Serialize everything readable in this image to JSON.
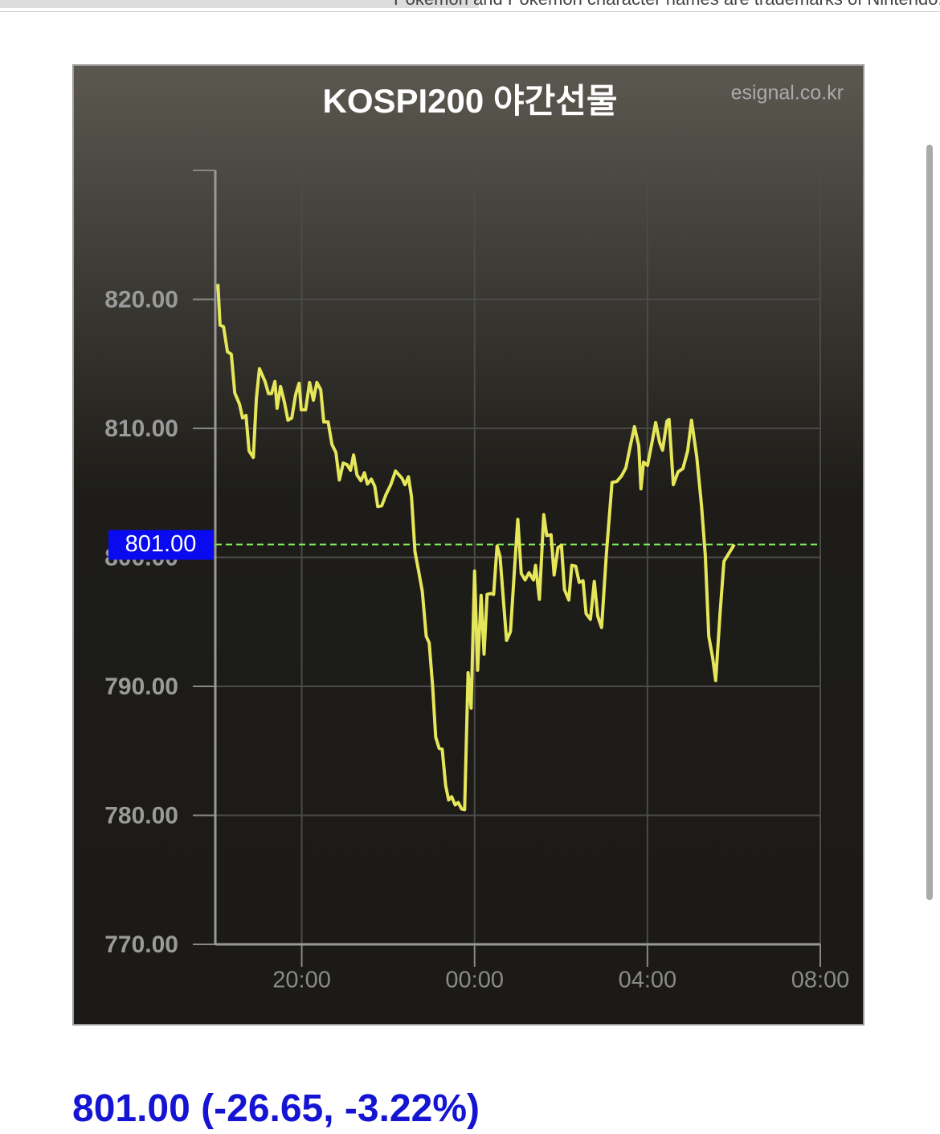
{
  "top_banner": "Pokemon and Pokemon character names are trademarks of Nintendo.",
  "footer": "801.00 (-26.65, -3.22%)",
  "chart_data": {
    "type": "line",
    "title": "KOSPI200 야간선물",
    "source": "esignal.co.kr",
    "xlim": [
      18,
      32
    ],
    "ylim": [
      770,
      830
    ],
    "xticks": [
      {
        "value": 20,
        "label": "20:00"
      },
      {
        "value": 24,
        "label": "00:00"
      },
      {
        "value": 28,
        "label": "04:00"
      },
      {
        "value": 32,
        "label": "08:00"
      }
    ],
    "yticks": [
      {
        "value": 770,
        "label": "770.00"
      },
      {
        "value": 780,
        "label": "780.00"
      },
      {
        "value": 790,
        "label": "790.00"
      },
      {
        "value": 800,
        "label": "800.00"
      },
      {
        "value": 810,
        "label": "810.00"
      },
      {
        "value": 820,
        "label": "820.00"
      }
    ],
    "grid": true,
    "reference_line": {
      "value": 801,
      "label": "801.00",
      "color": "#7ee85a"
    },
    "series": [
      {
        "color": "#e6e65a",
        "x": [
          18.06,
          18.11,
          18.19,
          18.28,
          18.37,
          18.45,
          18.56,
          18.63,
          18.71,
          18.78,
          18.88,
          18.95,
          19.02,
          19.15,
          19.23,
          19.3,
          19.38,
          19.43,
          19.51,
          19.6,
          19.68,
          19.77,
          19.86,
          19.94,
          19.99,
          20.09,
          20.18,
          20.27,
          20.35,
          20.44,
          20.51,
          20.61,
          20.7,
          20.79,
          20.87,
          20.96,
          21.05,
          21.13,
          21.2,
          21.28,
          21.37,
          21.45,
          21.52,
          21.61,
          21.69,
          21.76,
          21.85,
          21.95,
          22.06,
          22.17,
          22.32,
          22.39,
          22.47,
          22.54,
          22.62,
          22.69,
          22.79,
          22.88,
          22.95,
          23.03,
          23.1,
          23.18,
          23.25,
          23.33,
          23.4,
          23.47,
          23.55,
          23.62,
          23.7,
          23.77,
          23.85,
          23.92,
          24.0,
          24.07,
          24.15,
          24.22,
          24.29,
          24.37,
          24.44,
          24.52,
          24.59,
          24.74,
          24.83,
          24.93,
          25.0,
          25.08,
          25.17,
          25.26,
          25.36,
          25.41,
          25.5,
          25.6,
          25.67,
          25.77,
          25.84,
          25.93,
          26.01,
          26.08,
          26.18,
          26.25,
          26.34,
          26.42,
          26.51,
          26.58,
          26.68,
          26.77,
          26.85,
          26.94,
          27.05,
          27.18,
          27.29,
          27.4,
          27.5,
          27.61,
          27.7,
          27.8,
          27.85,
          27.91,
          28.0,
          28.11,
          28.19,
          28.28,
          28.35,
          28.45,
          28.5,
          28.6,
          28.71,
          28.82,
          28.93,
          29.02,
          29.14,
          29.25,
          29.34,
          29.42,
          29.51,
          29.58,
          29.68,
          29.77,
          30.01
        ],
        "values": [
          821.19,
          818.0,
          817.88,
          815.94,
          815.75,
          812.75,
          811.88,
          810.81,
          811.0,
          808.25,
          807.75,
          812.31,
          814.63,
          813.63,
          812.69,
          812.69,
          813.63,
          811.56,
          813.25,
          812.0,
          810.63,
          810.81,
          812.63,
          813.5,
          811.44,
          811.44,
          813.56,
          812.19,
          813.56,
          813.0,
          810.5,
          810.5,
          808.75,
          808.13,
          806.0,
          807.31,
          807.19,
          806.75,
          807.94,
          806.38,
          805.94,
          806.56,
          805.69,
          806.06,
          805.5,
          803.94,
          804.0,
          804.88,
          805.63,
          806.69,
          806.13,
          805.63,
          806.25,
          804.69,
          800.44,
          799.19,
          797.38,
          793.88,
          793.38,
          790.0,
          786.06,
          785.19,
          785.13,
          782.31,
          781.19,
          781.44,
          780.81,
          781.0,
          780.5,
          780.44,
          791.06,
          788.31,
          798.94,
          791.25,
          797.06,
          792.5,
          797.13,
          797.19,
          797.13,
          800.88,
          800.06,
          793.56,
          794.25,
          799.38,
          802.94,
          798.75,
          798.25,
          798.81,
          798.25,
          799.38,
          796.75,
          803.31,
          801.69,
          801.75,
          798.63,
          800.75,
          800.94,
          797.5,
          796.69,
          799.38,
          799.31,
          798.06,
          798.19,
          795.63,
          795.19,
          798.13,
          795.44,
          794.56,
          800.31,
          805.81,
          805.88,
          806.31,
          806.94,
          808.75,
          810.13,
          808.63,
          805.31,
          807.38,
          807.13,
          809.0,
          810.44,
          808.94,
          808.31,
          810.56,
          810.69,
          805.63,
          806.63,
          806.88,
          808.25,
          810.63,
          807.81,
          804.06,
          800.13,
          793.88,
          792.19,
          790.44,
          795.63,
          799.69,
          801.0
        ]
      }
    ]
  }
}
